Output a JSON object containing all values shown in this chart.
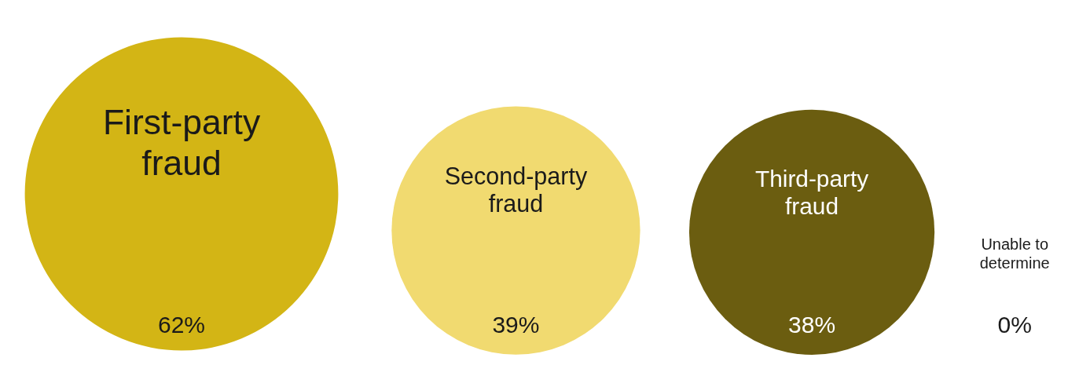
{
  "chart_data": {
    "type": "other",
    "categories": [
      "First-party fraud",
      "Second-party fraud",
      "Third-party fraud",
      "Unable to determine"
    ],
    "values": [
      62,
      39,
      38,
      0
    ],
    "value_labels": [
      "62%",
      "39%",
      "38%",
      "0%"
    ],
    "colors": [
      "#d3b515",
      "#f1da70",
      "#6b5d10",
      null
    ]
  }
}
